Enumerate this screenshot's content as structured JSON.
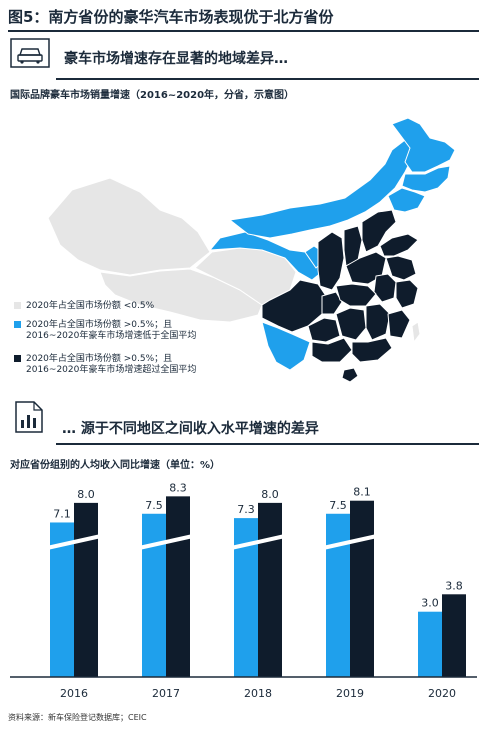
{
  "figure_title": "图5：南方省份的豪华汽车市场表现优于北方省份",
  "section1": {
    "icon": "car-icon",
    "title": "豪车市场增速存在显著的地域差异…",
    "map_title": "国际品牌豪车市场销量增速（2016~2020年，分省，示意图）",
    "legend": [
      {
        "label": "2020年占全国市场份额 <0.5%",
        "color": "#e6e6e6"
      },
      {
        "label": "2020年占全国市场份额 >0.5%；且\n2016~2020年豪车市场增速低于全国平均",
        "color": "#1fa0ec"
      },
      {
        "label": "2020年占全国市场份额 >0.5%；且\n2016~2020年豪车市场增速超过全国平均",
        "color": "#0f1c2c"
      }
    ]
  },
  "section2": {
    "icon": "bar-chart-icon",
    "title": "… 源于不同地区之间收入水平增速的差异",
    "chart_title": "对应省份组别的人均收入同比增速（单位：%）"
  },
  "chart_data": {
    "type": "bar",
    "categories": [
      "2016",
      "2017",
      "2018",
      "2019",
      "2020"
    ],
    "series": [
      {
        "values": [
          7.1,
          7.5,
          7.3,
          7.5,
          3.0
        ],
        "color": "#1fa0ec"
      },
      {
        "values": [
          8.0,
          8.3,
          8.0,
          8.1,
          3.8
        ],
        "color": "#0f1c2c"
      }
    ],
    "axis_break": true,
    "ylim": [
      0,
      8.5
    ]
  },
  "source": "资料来源：新车保险登记数据库；CEIC"
}
